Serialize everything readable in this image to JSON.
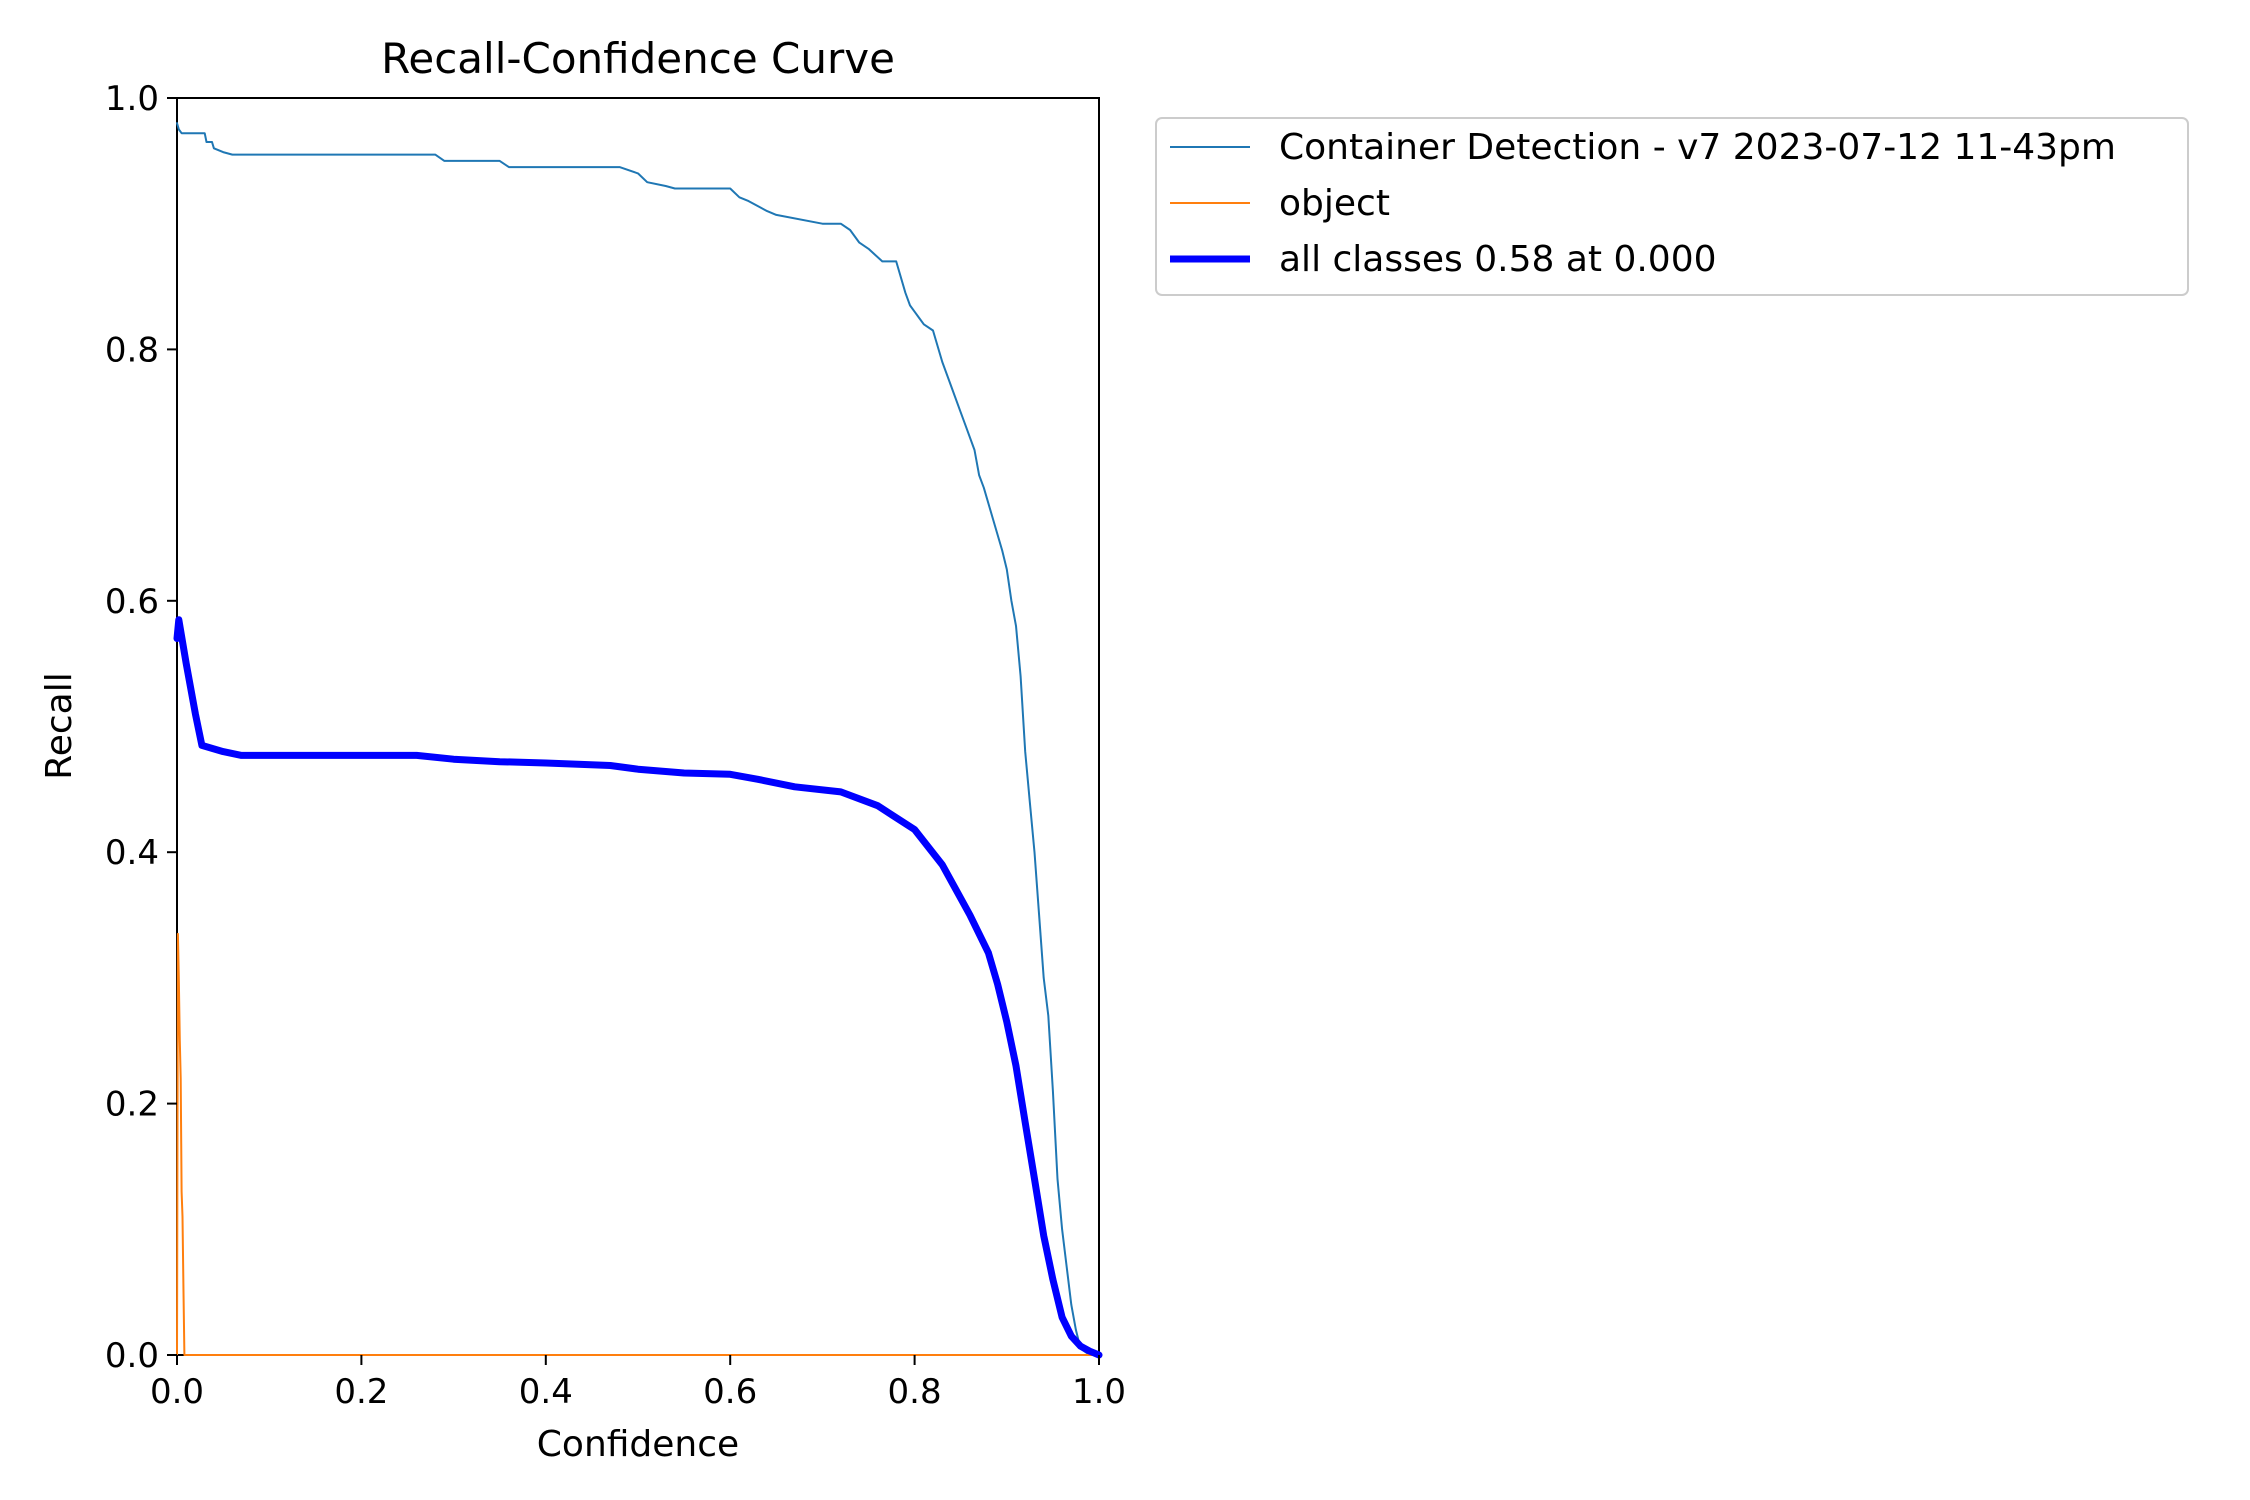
{
  "chart_data": {
    "type": "line",
    "title": "Recall-Confidence Curve",
    "xlabel": "Confidence",
    "ylabel": "Recall",
    "xlim": [
      0,
      1
    ],
    "ylim": [
      0,
      1
    ],
    "grid": false,
    "legend_position": "outside-right",
    "x_ticks": [
      "0.0",
      "0.2",
      "0.4",
      "0.6",
      "0.8",
      "1.0"
    ],
    "y_ticks": [
      "0.0",
      "0.2",
      "0.4",
      "0.6",
      "0.8",
      "1.0"
    ],
    "series": [
      {
        "name": "Container Detection - v7 2023-07-12 11-43pm",
        "color": "#1f77b4",
        "line_width": 2,
        "x": [
          0.0,
          0.002,
          0.005,
          0.03,
          0.032,
          0.038,
          0.04,
          0.05,
          0.06,
          0.28,
          0.29,
          0.35,
          0.36,
          0.48,
          0.5,
          0.51,
          0.53,
          0.54,
          0.6,
          0.61,
          0.62,
          0.63,
          0.64,
          0.65,
          0.7,
          0.72,
          0.73,
          0.74,
          0.75,
          0.765,
          0.78,
          0.79,
          0.795,
          0.8,
          0.805,
          0.81,
          0.82,
          0.83,
          0.84,
          0.85,
          0.855,
          0.865,
          0.87,
          0.875,
          0.885,
          0.895,
          0.9,
          0.905,
          0.91,
          0.915,
          0.92,
          0.925,
          0.93,
          0.935,
          0.94,
          0.945,
          0.95,
          0.955,
          0.96,
          0.965,
          0.97,
          0.975,
          0.98,
          0.99,
          1.0
        ],
        "y": [
          0.98,
          0.975,
          0.972,
          0.972,
          0.965,
          0.965,
          0.96,
          0.957,
          0.955,
          0.955,
          0.95,
          0.95,
          0.945,
          0.945,
          0.94,
          0.933,
          0.93,
          0.928,
          0.928,
          0.921,
          0.918,
          0.914,
          0.91,
          0.907,
          0.9,
          0.9,
          0.895,
          0.885,
          0.88,
          0.87,
          0.87,
          0.845,
          0.835,
          0.83,
          0.825,
          0.82,
          0.815,
          0.79,
          0.77,
          0.75,
          0.74,
          0.72,
          0.7,
          0.69,
          0.665,
          0.64,
          0.625,
          0.6,
          0.58,
          0.54,
          0.48,
          0.44,
          0.4,
          0.35,
          0.3,
          0.27,
          0.21,
          0.14,
          0.1,
          0.07,
          0.04,
          0.02,
          0.005,
          0.0,
          0.0
        ]
      },
      {
        "name": "object",
        "color": "#ff7f0e",
        "line_width": 2,
        "x": [
          0.0,
          0.001,
          0.002,
          0.003,
          0.004,
          0.005,
          0.006,
          0.007,
          0.008,
          1.0
        ],
        "y": [
          0.0,
          0.335,
          0.3,
          0.25,
          0.22,
          0.13,
          0.11,
          0.05,
          0.0,
          0.0
        ]
      },
      {
        "name": "all classes 0.58 at 0.000",
        "color": "#0000ff",
        "line_width": 7,
        "x": [
          0.0,
          0.002,
          0.01,
          0.02,
          0.027,
          0.05,
          0.07,
          0.1,
          0.2,
          0.26,
          0.3,
          0.35,
          0.4,
          0.47,
          0.5,
          0.55,
          0.6,
          0.63,
          0.67,
          0.72,
          0.76,
          0.8,
          0.83,
          0.86,
          0.88,
          0.89,
          0.9,
          0.91,
          0.92,
          0.93,
          0.94,
          0.95,
          0.96,
          0.97,
          0.98,
          0.99,
          1.0
        ],
        "y": [
          0.57,
          0.585,
          0.55,
          0.51,
          0.485,
          0.48,
          0.477,
          0.477,
          0.477,
          0.477,
          0.474,
          0.472,
          0.471,
          0.469,
          0.466,
          0.463,
          0.462,
          0.458,
          0.452,
          0.448,
          0.437,
          0.418,
          0.39,
          0.35,
          0.32,
          0.295,
          0.265,
          0.23,
          0.185,
          0.14,
          0.095,
          0.06,
          0.03,
          0.015,
          0.007,
          0.003,
          0.0
        ]
      }
    ]
  }
}
